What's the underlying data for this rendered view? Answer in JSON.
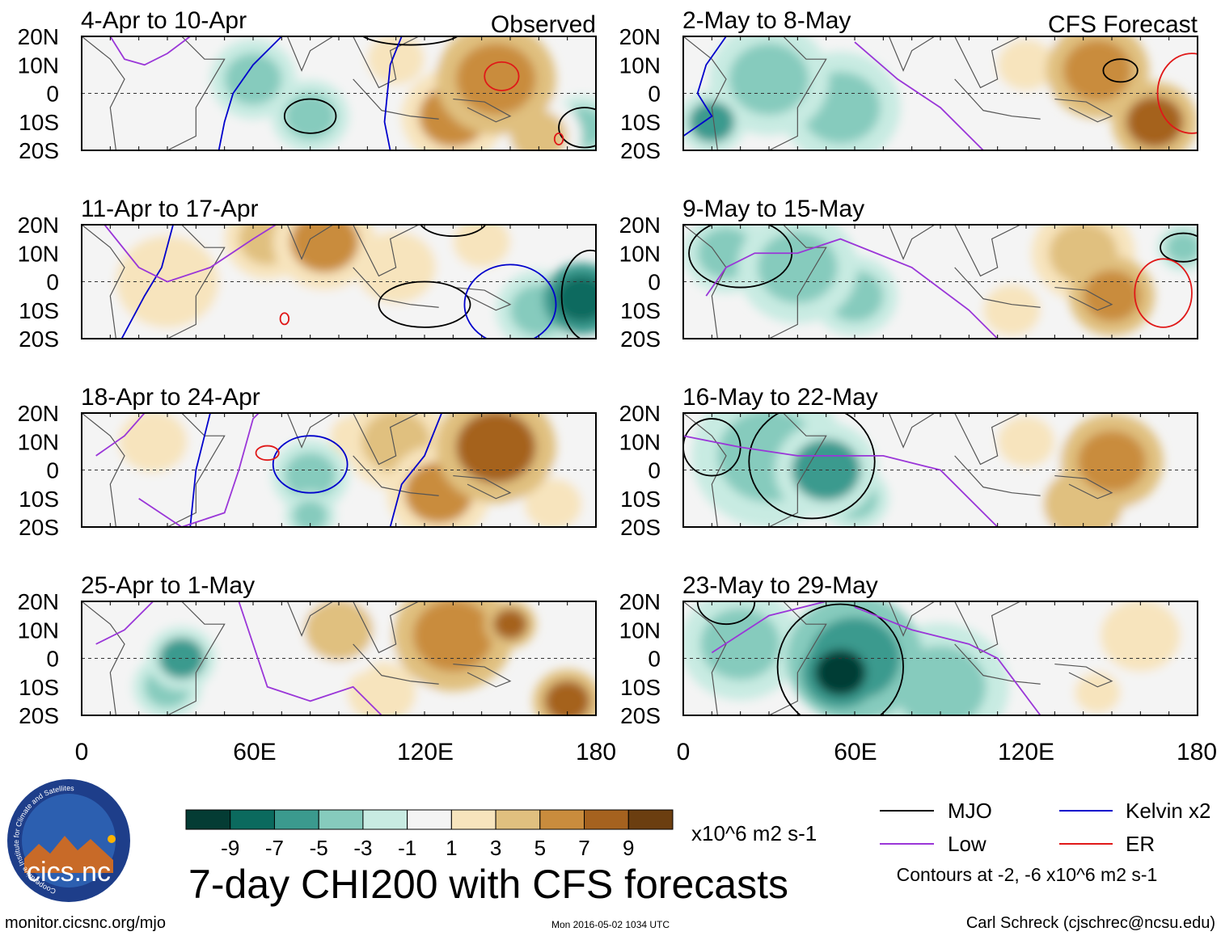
{
  "chart_data": {
    "type": "heatmap",
    "title": "7-day CHI200 with CFS forecasts",
    "variable": "CHI200",
    "units": "x10^6 m2 s-1",
    "observed_label": "Observed",
    "forecast_label": "CFS Forecast",
    "x_ticks": [
      "0",
      "60E",
      "120E",
      "180"
    ],
    "y_ticks": [
      "20N",
      "10N",
      "0",
      "10S",
      "20S"
    ],
    "xlim": [
      0,
      180
    ],
    "ylim": [
      -20,
      20
    ],
    "colorbar": {
      "labels": [
        "-9",
        "-7",
        "-5",
        "-3",
        "-1",
        "1",
        "3",
        "5",
        "7",
        "9"
      ],
      "colors": [
        "#043c34",
        "#0b6a5e",
        "#3b9a8e",
        "#86cbbd",
        "#c8ebe2",
        "#f4f4f4",
        "#f7e4bd",
        "#e0c07f",
        "#c98c3d",
        "#a5621f",
        "#6b3e10"
      ]
    },
    "legend": {
      "items": [
        {
          "label": "MJO",
          "color": "#000000"
        },
        {
          "label": "Kelvin x2",
          "color": "#0000cc"
        },
        {
          "label": "Low",
          "color": "#9a36d8"
        },
        {
          "label": "ER",
          "color": "#e01818"
        }
      ],
      "contour_note": "Contours at -2, -6 x10^6 m2 s-1"
    },
    "panels": [
      {
        "title": "4-Apr to 10-Apr",
        "kind": "observed",
        "field": [
          {
            "lon": 60,
            "lat": 5,
            "v": -2.5,
            "s": 10
          },
          {
            "lon": 80,
            "lat": -8,
            "v": -3,
            "s": 9
          },
          {
            "lon": 145,
            "lat": 5,
            "v": 7,
            "s": 14
          },
          {
            "lon": 130,
            "lat": -8,
            "v": 6,
            "s": 12
          },
          {
            "lon": 110,
            "lat": 12,
            "v": 3,
            "s": 10
          },
          {
            "lon": 30,
            "lat": 5,
            "v": 1.5,
            "s": 14
          },
          {
            "lon": 175,
            "lat": -12,
            "v": -3,
            "s": 8
          },
          {
            "lon": 160,
            "lat": -15,
            "v": 4,
            "s": 10
          }
        ],
        "contours": [
          {
            "type": "MJO",
            "lon": 80,
            "lat": -8,
            "rx": 9,
            "ry": 6
          },
          {
            "type": "MJO",
            "lon": 115,
            "lat": 22,
            "rx": 18,
            "ry": 5
          },
          {
            "type": "MJO",
            "lon": 176,
            "lat": -12,
            "rx": 9,
            "ry": 7
          },
          {
            "type": "ER",
            "lon": 147,
            "lat": 6,
            "rx": 6,
            "ry": 5
          },
          {
            "type": "ER",
            "lon": 167,
            "lat": -16,
            "rx": 1.5,
            "ry": 2
          }
        ],
        "lines": [
          {
            "type": "Kelvin",
            "pts": [
              [
                70,
                20
              ],
              [
                60,
                10
              ],
              [
                53,
                0
              ],
              [
                50,
                -10
              ],
              [
                48,
                -20
              ]
            ]
          },
          {
            "type": "Kelvin",
            "pts": [
              [
                112,
                20
              ],
              [
                108,
                10
              ],
              [
                107,
                0
              ],
              [
                106,
                -10
              ],
              [
                108,
                -20
              ]
            ]
          },
          {
            "type": "Low",
            "pts": [
              [
                10,
                20
              ],
              [
                15,
                12
              ],
              [
                22,
                10
              ],
              [
                30,
                14
              ],
              [
                38,
                20
              ]
            ]
          }
        ]
      },
      {
        "title": "11-Apr to 17-Apr",
        "kind": "observed",
        "field": [
          {
            "lon": 85,
            "lat": 14,
            "v": 6,
            "s": 12
          },
          {
            "lon": 65,
            "lat": 15,
            "v": 5,
            "s": 10
          },
          {
            "lon": 110,
            "lat": 5,
            "v": 3,
            "s": 14
          },
          {
            "lon": 30,
            "lat": 0,
            "v": 2,
            "s": 18
          },
          {
            "lon": 175,
            "lat": -6,
            "v": -8,
            "s": 9
          },
          {
            "lon": 160,
            "lat": -10,
            "v": -3,
            "s": 10
          },
          {
            "lon": 140,
            "lat": 14,
            "v": 3,
            "s": 10
          },
          {
            "lon": 80,
            "lat": -12,
            "v": 1.5,
            "s": 10
          }
        ],
        "contours": [
          {
            "type": "MJO",
            "lon": 120,
            "lat": -8,
            "rx": 16,
            "ry": 8
          },
          {
            "type": "MJO",
            "lon": 130,
            "lat": 22,
            "rx": 12,
            "ry": 6
          },
          {
            "type": "MJO",
            "lon": 178,
            "lat": -5,
            "rx": 10,
            "ry": 16
          },
          {
            "type": "Kelvin",
            "lon": 150,
            "lat": -8,
            "rx": 16,
            "ry": 14
          },
          {
            "type": "ER",
            "lon": 71,
            "lat": -13,
            "rx": 1.5,
            "ry": 2
          }
        ],
        "lines": [
          {
            "type": "Kelvin",
            "pts": [
              [
                32,
                20
              ],
              [
                28,
                5
              ],
              [
                22,
                -5
              ],
              [
                14,
                -20
              ]
            ]
          },
          {
            "type": "Low",
            "pts": [
              [
                8,
                20
              ],
              [
                20,
                5
              ],
              [
                30,
                0
              ],
              [
                45,
                5
              ],
              [
                60,
                15
              ],
              [
                68,
                20
              ]
            ]
          }
        ]
      },
      {
        "title": "18-Apr to 24-Apr",
        "kind": "observed",
        "field": [
          {
            "lon": 145,
            "lat": 8,
            "v": 8,
            "s": 14
          },
          {
            "lon": 125,
            "lat": -8,
            "v": 6,
            "s": 12
          },
          {
            "lon": 110,
            "lat": 10,
            "v": 5,
            "s": 12
          },
          {
            "lon": 25,
            "lat": 10,
            "v": 3,
            "s": 12
          },
          {
            "lon": 80,
            "lat": -2,
            "v": -2.5,
            "s": 9
          },
          {
            "lon": 80,
            "lat": -16,
            "v": -3,
            "s": 6
          },
          {
            "lon": 165,
            "lat": -12,
            "v": 3,
            "s": 10
          },
          {
            "lon": 95,
            "lat": 12,
            "v": 2,
            "s": 8
          }
        ],
        "contours": [
          {
            "type": "Kelvin",
            "lon": 80,
            "lat": 2,
            "rx": 13,
            "ry": 10
          },
          {
            "type": "ER",
            "lon": 65,
            "lat": 6,
            "rx": 4,
            "ry": 2.5
          }
        ],
        "lines": [
          {
            "type": "Kelvin",
            "pts": [
              [
                45,
                20
              ],
              [
                40,
                0
              ],
              [
                38,
                -20
              ]
            ]
          },
          {
            "type": "Kelvin",
            "pts": [
              [
                108,
                -20
              ],
              [
                112,
                -5
              ],
              [
                120,
                5
              ],
              [
                126,
                20
              ]
            ]
          },
          {
            "type": "Low",
            "pts": [
              [
                5,
                5
              ],
              [
                15,
                12
              ],
              [
                22,
                20
              ]
            ]
          },
          {
            "type": "Low",
            "pts": [
              [
                20,
                -10
              ],
              [
                35,
                -20
              ],
              [
                50,
                -15
              ],
              [
                55,
                0
              ],
              [
                60,
                18
              ],
              [
                62,
                20
              ]
            ]
          }
        ]
      },
      {
        "title": "25-Apr to 1-May",
        "kind": "observed",
        "field": [
          {
            "lon": 35,
            "lat": 0,
            "v": -5,
            "s": 8
          },
          {
            "lon": 30,
            "lat": -10,
            "v": -3,
            "s": 8
          },
          {
            "lon": 130,
            "lat": 8,
            "v": 7,
            "s": 14
          },
          {
            "lon": 150,
            "lat": 12,
            "v": 8,
            "s": 6
          },
          {
            "lon": 170,
            "lat": -15,
            "v": 8,
            "s": 8
          },
          {
            "lon": 90,
            "lat": 10,
            "v": 4,
            "s": 12
          },
          {
            "lon": 65,
            "lat": -8,
            "v": 1.5,
            "s": 12
          },
          {
            "lon": 105,
            "lat": -12,
            "v": 3,
            "s": 12
          }
        ],
        "contours": [],
        "lines": [
          {
            "type": "Low",
            "pts": [
              [
                5,
                5
              ],
              [
                15,
                10
              ],
              [
                25,
                20
              ]
            ]
          },
          {
            "type": "Low",
            "pts": [
              [
                55,
                20
              ],
              [
                60,
                5
              ],
              [
                65,
                -10
              ],
              [
                80,
                -15
              ],
              [
                95,
                -10
              ],
              [
                105,
                -20
              ]
            ]
          }
        ]
      },
      {
        "title": "2-May to 8-May",
        "kind": "forecast",
        "field": [
          {
            "lon": 30,
            "lat": 5,
            "v": -4,
            "s": 14
          },
          {
            "lon": 10,
            "lat": -10,
            "v": -5,
            "s": 8
          },
          {
            "lon": 55,
            "lat": -5,
            "v": -2.5,
            "s": 14
          },
          {
            "lon": 145,
            "lat": 8,
            "v": 7,
            "s": 12
          },
          {
            "lon": 165,
            "lat": -10,
            "v": 8,
            "s": 10
          },
          {
            "lon": 120,
            "lat": 10,
            "v": 3,
            "s": 10
          },
          {
            "lon": 95,
            "lat": 12,
            "v": 1.5,
            "s": 10
          }
        ],
        "contours": [
          {
            "type": "MJO",
            "lon": 153,
            "lat": 8,
            "rx": 6,
            "ry": 4
          },
          {
            "type": "ER",
            "lon": 178,
            "lat": 0,
            "rx": 12,
            "ry": 14
          }
        ],
        "lines": [
          {
            "type": "Kelvin",
            "pts": [
              [
                15,
                20
              ],
              [
                8,
                10
              ],
              [
                5,
                0
              ],
              [
                10,
                -8
              ],
              [
                0,
                -15
              ]
            ]
          },
          {
            "type": "Low",
            "pts": [
              [
                60,
                18
              ],
              [
                75,
                5
              ],
              [
                90,
                -5
              ],
              [
                105,
                -20
              ]
            ]
          }
        ]
      },
      {
        "title": "9-May to 15-May",
        "kind": "forecast",
        "field": [
          {
            "lon": 40,
            "lat": 5,
            "v": -4,
            "s": 14
          },
          {
            "lon": 15,
            "lat": 10,
            "v": -3,
            "s": 10
          },
          {
            "lon": 60,
            "lat": -5,
            "v": -2.5,
            "s": 10
          },
          {
            "lon": 150,
            "lat": -5,
            "v": 7,
            "s": 10
          },
          {
            "lon": 140,
            "lat": 10,
            "v": 5,
            "s": 12
          },
          {
            "lon": 175,
            "lat": 12,
            "v": -2.5,
            "s": 6
          },
          {
            "lon": 115,
            "lat": -10,
            "v": 2,
            "s": 10
          }
        ],
        "contours": [
          {
            "type": "MJO",
            "lon": 20,
            "lat": 10,
            "rx": 18,
            "ry": 12
          },
          {
            "type": "MJO",
            "lon": 175,
            "lat": 12,
            "rx": 8,
            "ry": 5
          },
          {
            "type": "ER",
            "lon": 168,
            "lat": -4,
            "rx": 10,
            "ry": 12
          }
        ],
        "lines": [
          {
            "type": "Low",
            "pts": [
              [
                8,
                -5
              ],
              [
                15,
                5
              ],
              [
                25,
                10
              ],
              [
                40,
                10
              ],
              [
                55,
                15
              ],
              [
                80,
                5
              ],
              [
                100,
                -10
              ],
              [
                110,
                -20
              ]
            ]
          }
        ]
      },
      {
        "title": "16-May to 22-May",
        "kind": "forecast",
        "field": [
          {
            "lon": 50,
            "lat": 0,
            "v": -5,
            "s": 12
          },
          {
            "lon": 30,
            "lat": 5,
            "v": -3,
            "s": 18
          },
          {
            "lon": 60,
            "lat": -10,
            "v": -4,
            "s": 8
          },
          {
            "lon": 150,
            "lat": 3,
            "v": 7,
            "s": 12
          },
          {
            "lon": 140,
            "lat": -12,
            "v": 4,
            "s": 14
          },
          {
            "lon": 120,
            "lat": 10,
            "v": 2,
            "s": 10
          }
        ],
        "contours": [
          {
            "type": "MJO",
            "lon": 45,
            "lat": 3,
            "rx": 22,
            "ry": 20
          },
          {
            "type": "MJO",
            "lon": 10,
            "lat": 8,
            "rx": 10,
            "ry": 10
          }
        ],
        "lines": [
          {
            "type": "Low",
            "pts": [
              [
                0,
                12
              ],
              [
                20,
                8
              ],
              [
                40,
                5
              ],
              [
                70,
                5
              ],
              [
                90,
                0
              ],
              [
                110,
                -20
              ]
            ]
          }
        ]
      },
      {
        "title": "23-May to 29-May",
        "kind": "forecast",
        "field": [
          {
            "lon": 55,
            "lat": -5,
            "v": -9,
            "s": 9
          },
          {
            "lon": 60,
            "lat": 0,
            "v": -6,
            "s": 16
          },
          {
            "lon": 90,
            "lat": -10,
            "v": -3,
            "s": 16
          },
          {
            "lon": 20,
            "lat": 5,
            "v": -3,
            "s": 14
          },
          {
            "lon": 160,
            "lat": 8,
            "v": 3,
            "s": 14
          },
          {
            "lon": 145,
            "lat": -12,
            "v": 3,
            "s": 8
          }
        ],
        "contours": [
          {
            "type": "MJO",
            "lon": 55,
            "lat": -3,
            "rx": 22,
            "ry": 22
          },
          {
            "type": "MJO",
            "lon": 15,
            "lat": 20,
            "rx": 10,
            "ry": 8
          }
        ],
        "lines": [
          {
            "type": "Low",
            "pts": [
              [
                10,
                2
              ],
              [
                30,
                15
              ],
              [
                50,
                20
              ]
            ]
          },
          {
            "type": "Low",
            "pts": [
              [
                60,
                18
              ],
              [
                80,
                10
              ],
              [
                100,
                5
              ],
              [
                110,
                0
              ],
              [
                125,
                -20
              ]
            ]
          }
        ]
      }
    ]
  },
  "branding": {
    "logo_ring_text": "Cooperative Institute for Climate and Satellites",
    "logo_name": "cics.nc"
  },
  "footer": {
    "url": "monitor.cicsnc.org/mjo",
    "timestamp": "Mon 2016-05-02 1034 UTC",
    "author": "Carl Schreck (cjschrec@ncsu.edu)"
  }
}
